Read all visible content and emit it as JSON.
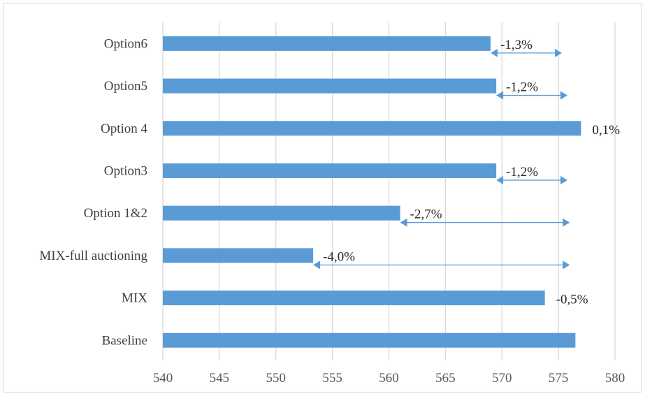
{
  "chart_data": {
    "type": "bar",
    "orientation": "horizontal",
    "categories": [
      "Option6",
      "Option5",
      "Option 4",
      "Option3",
      "Option 1&2",
      "MIX-full auctioning",
      "MIX ",
      "Baseline"
    ],
    "values": [
      569.0,
      569.5,
      577.0,
      569.5,
      561.0,
      553.3,
      573.8,
      576.5
    ],
    "data_labels": [
      "-1,3%",
      "-1,2%",
      "0,1%",
      "-1,2%",
      "-2,7%",
      "-4,0%",
      "-0,5%",
      ""
    ],
    "arrows": [
      {
        "from": 569.0,
        "to": 575.3
      },
      {
        "from": 569.5,
        "to": 575.8
      },
      null,
      {
        "from": 569.5,
        "to": 575.8
      },
      {
        "from": 561.0,
        "to": 576.0
      },
      {
        "from": 553.3,
        "to": 576.0
      },
      null,
      null
    ],
    "xlim": [
      540,
      580
    ],
    "xticks": [
      540,
      545,
      550,
      555,
      560,
      565,
      570,
      575,
      580
    ],
    "grid": true,
    "colors": {
      "bar": "#5b9bd5",
      "grid": "#d9d9d9",
      "arrow": "#5b9bd5"
    }
  }
}
